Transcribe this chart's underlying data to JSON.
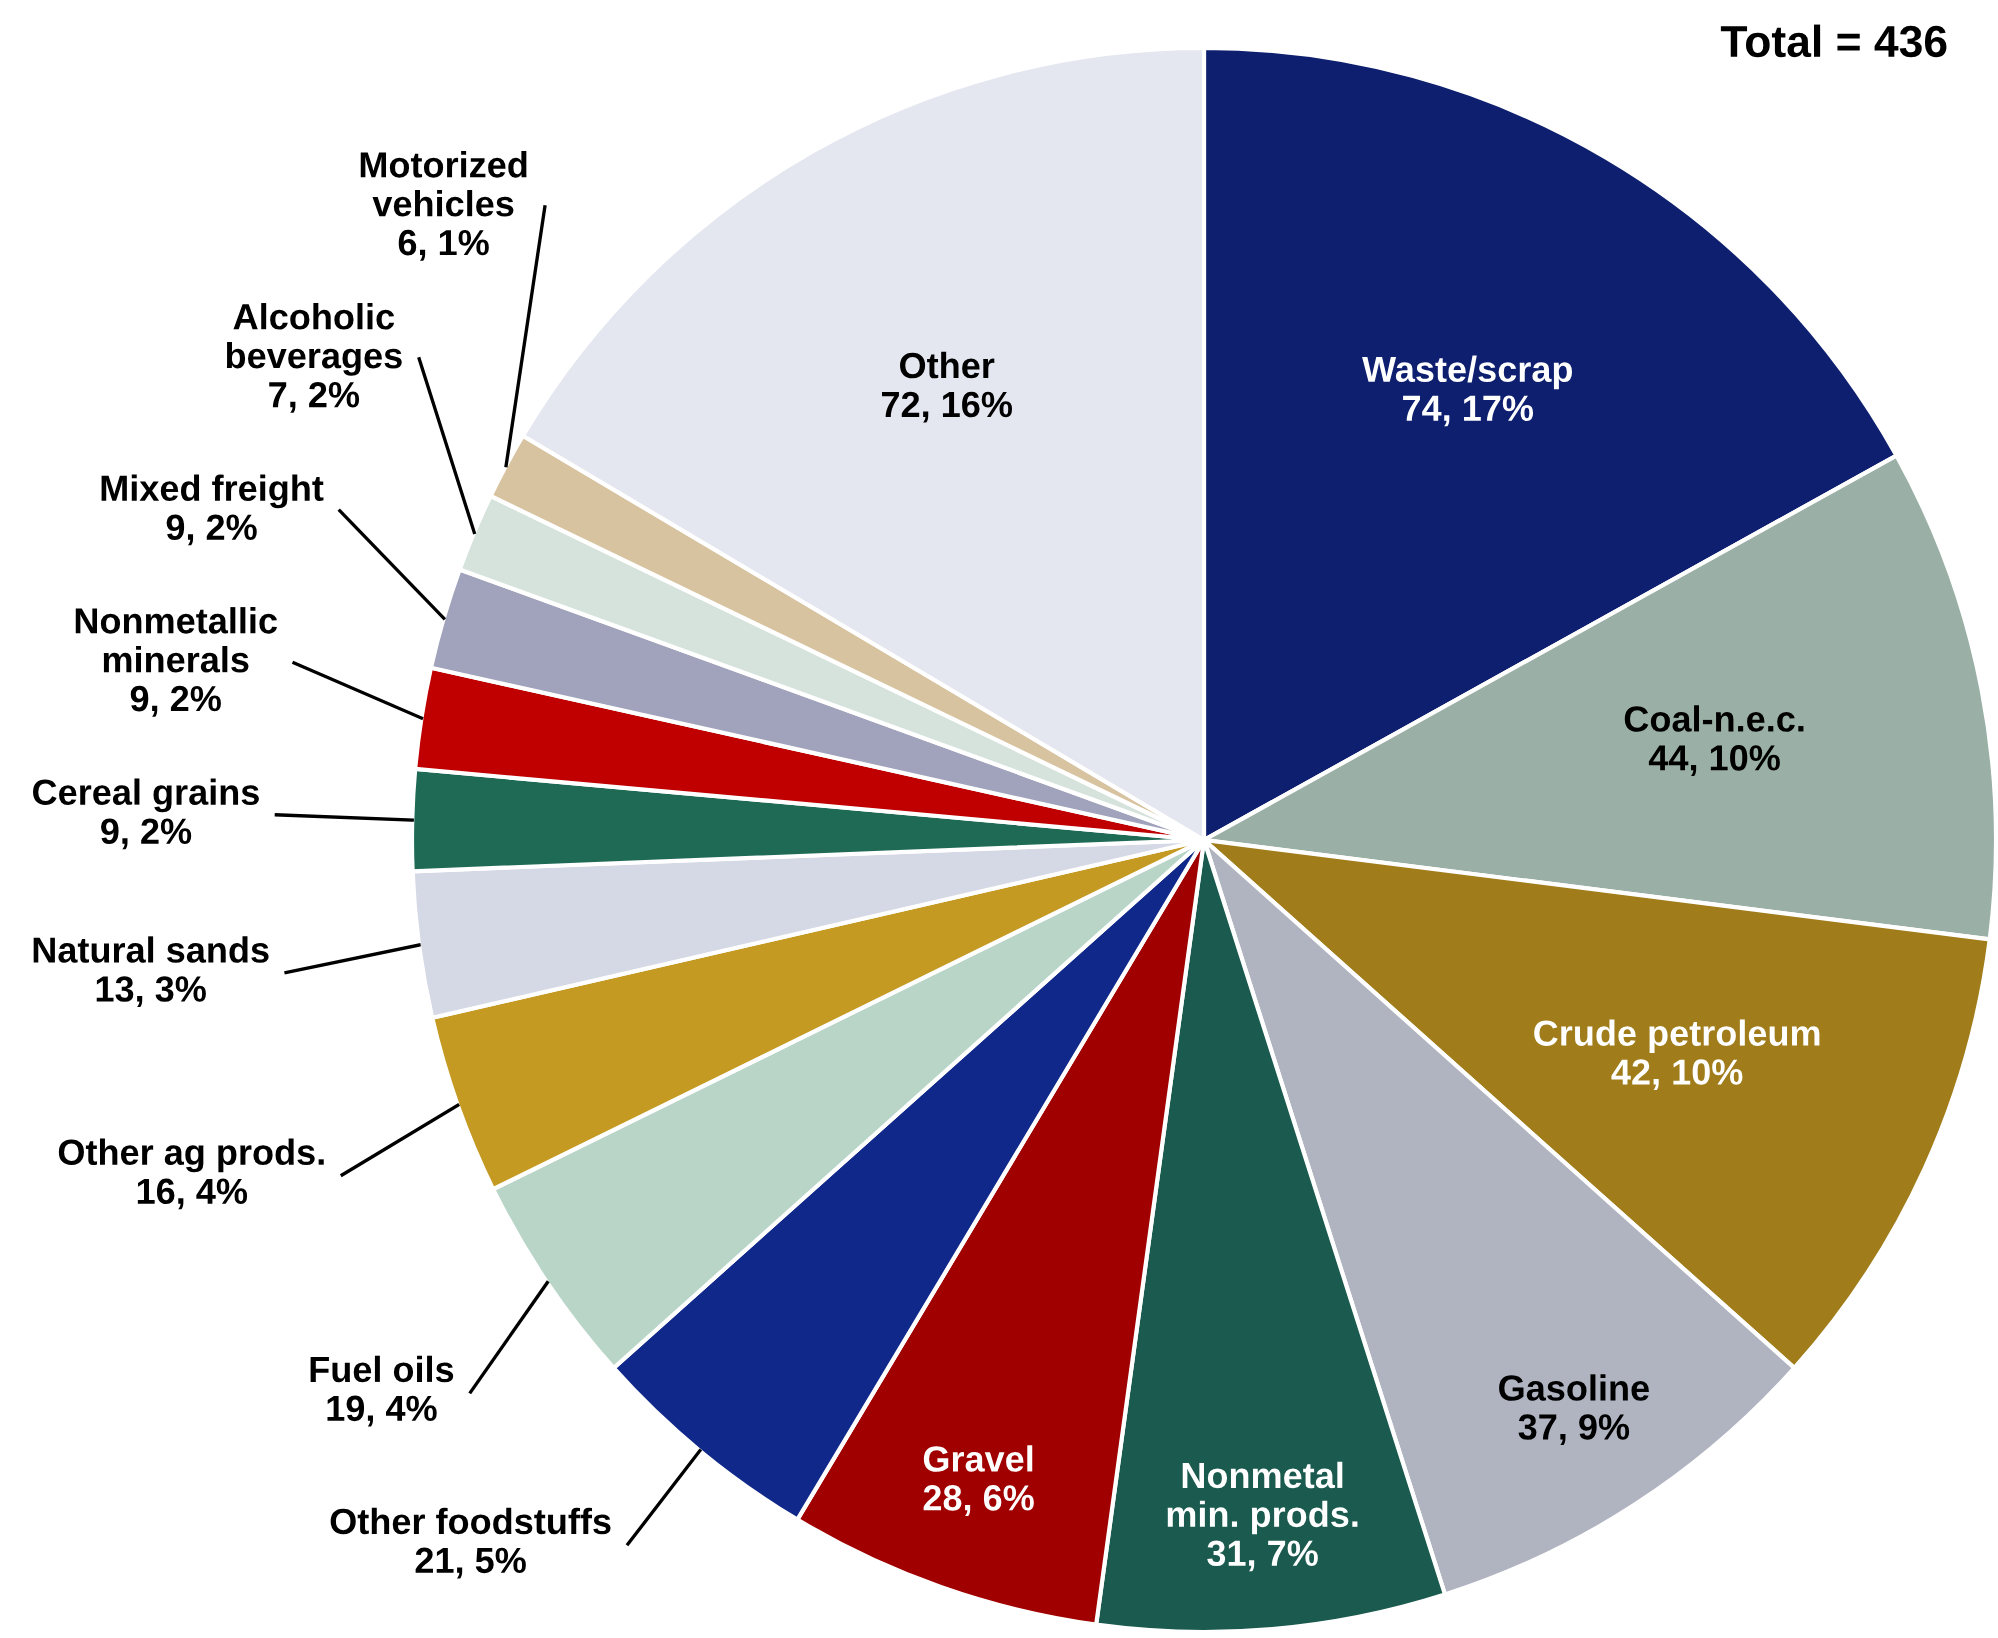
{
  "chart_data": {
    "type": "pie",
    "title": "Total = 436",
    "categories": [
      "Waste/scrap",
      "Coal-n.e.c.",
      "Crude petroleum",
      "Gasoline",
      "Nonmetal\nmin. prods.",
      "Gravel",
      "Other foodstuffs",
      "Fuel oils",
      "Other ag prods.",
      "Natural sands",
      "Cereal grains",
      "Nonmetallic\nminerals",
      "Mixed freight",
      "Alcoholic\nbeverages",
      "Motorized\nvehicles",
      "Other"
    ],
    "values": [
      74,
      44,
      42,
      37,
      31,
      28,
      21,
      19,
      16,
      13,
      9,
      9,
      9,
      7,
      6,
      72
    ],
    "value_labels": [
      "74, 17%",
      "44, 10%",
      "42, 10%",
      "37, 9%",
      "31, 7%",
      "28, 6%",
      "21, 5%",
      "19, 4%",
      "16, 4%",
      "13, 3%",
      "9, 2%",
      "9, 2%",
      "9, 2%",
      "7, 2%",
      "6, 1%",
      "72, 16%"
    ],
    "colors": [
      "#0d1f6e",
      "#9aafa5",
      "#a07c1a",
      "#b0b3c0",
      "#1b5a4e",
      "#a00000",
      "#10288a",
      "#b8d5c8",
      "#c49a22",
      "#d5d8e5",
      "#1f6a55",
      "#c00000",
      "#a0a3bb",
      "#d5e3dc",
      "#d8c3a0",
      "#e4e6f0"
    ]
  }
}
